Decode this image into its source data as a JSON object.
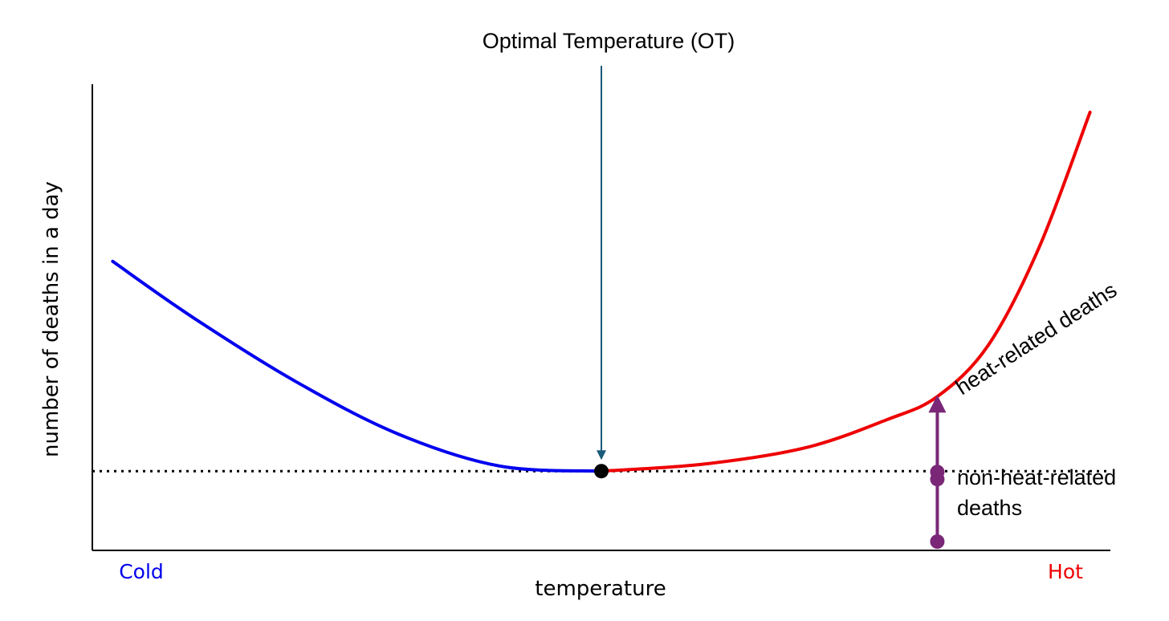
{
  "chart_data": {
    "type": "line",
    "title": "Optimal Temperature (OT)",
    "xlabel": "temperature",
    "ylabel": "number of deaths in a day",
    "x_tick_labels": {
      "left": "Cold",
      "right": "Hot"
    },
    "xlim": [
      0,
      100
    ],
    "ylim": [
      0,
      100
    ],
    "grid": false,
    "series": [
      {
        "name": "cold side",
        "color": "#0000ee",
        "x": [
          2,
          10,
          20,
          30,
          40,
          50
        ],
        "y": [
          62.0,
          49.8,
          36.2,
          25.0,
          18.1,
          17.0
        ]
      },
      {
        "name": "hot side",
        "color": "#ee0000",
        "x": [
          50,
          60,
          70,
          78,
          83,
          88,
          93,
          98
        ],
        "y": [
          17.0,
          18.5,
          22.0,
          28.0,
          33.0,
          44.0,
          65.0,
          94.0
        ]
      }
    ],
    "baseline": {
      "y": 17.0,
      "style": "dotted"
    },
    "optimal_point": {
      "x": 50,
      "y": 17.0
    },
    "ot_arrow": {
      "x": 50,
      "color": "#1a5a7a"
    },
    "decomposition": {
      "x": 83,
      "color": "#7a2778",
      "heat_range": [
        17.0,
        33.0
      ],
      "non_heat_range": [
        0,
        17.0
      ]
    },
    "annotations": [
      {
        "text": "heat-related deaths",
        "orientation": "rotated"
      },
      {
        "text": "non-heat-related",
        "line": 1
      },
      {
        "text": "deaths",
        "line": 2
      }
    ],
    "colors": {
      "cold": "#0000ee",
      "hot": "#ee0000",
      "arrow": "#1a5a7a",
      "decomposition": "#7a2778",
      "axis": "#000000"
    }
  }
}
